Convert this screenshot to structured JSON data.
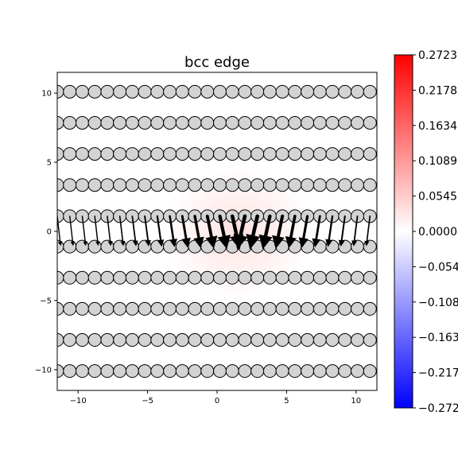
{
  "chart_data": {
    "type": "scatter",
    "title": "bcc edge",
    "xlabel": "",
    "ylabel": "",
    "xlim": [
      -11.5,
      11.5
    ],
    "ylim": [
      -11.5,
      11.5
    ],
    "xticks": [
      -10,
      -5,
      0,
      5,
      10
    ],
    "yticks": [
      -10,
      -5,
      0,
      5,
      10
    ],
    "xtick_labels": [
      "−10",
      "−5",
      "0",
      "5",
      "10"
    ],
    "ytick_labels": [
      "−10",
      "−5",
      "0",
      "5",
      "10"
    ],
    "grid": false,
    "atoms": {
      "rows_y": [
        10.1,
        7.85,
        5.6,
        3.35,
        1.1,
        -1.1,
        -3.35,
        -5.6,
        -7.85,
        -10.1
      ],
      "spacing": 0.9,
      "color": "#d3d3d3",
      "edge_color": "#000000"
    },
    "displacement_arrows": {
      "y_top": 1.1,
      "y_bottom": -1.1,
      "color": "#000000"
    },
    "colorbar": {
      "colormap": "bwr",
      "min": -0.2723,
      "max": 0.2723,
      "ticks": [
        0.2723,
        0.2178,
        0.1634,
        0.1089,
        0.0545,
        0.0,
        -0.0545,
        -0.1089,
        -0.1634,
        -0.2178,
        -0.2723
      ],
      "tick_labels": [
        "0.2723",
        "0.2178",
        "0.1634",
        "0.1089",
        "0.0545",
        "0.0000",
        "−0.0545",
        "−0.1089",
        "−0.1634",
        "−0.2178",
        "−0.2723"
      ],
      "colors": {
        "low": "#0000ff",
        "mid": "#ffffff",
        "high": "#ff0000"
      }
    }
  }
}
